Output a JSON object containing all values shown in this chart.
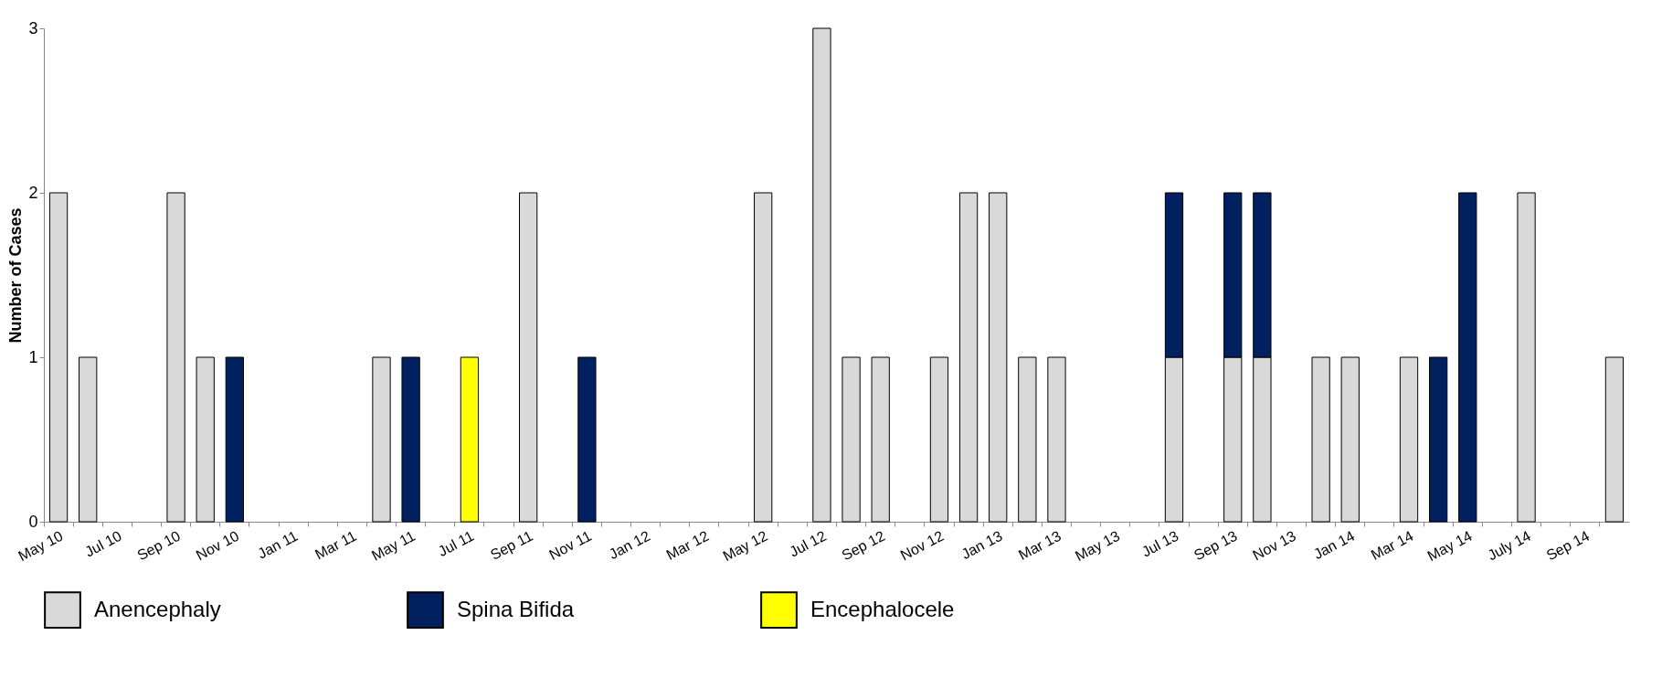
{
  "chart_data": {
    "type": "bar",
    "stacked": true,
    "ylabel": "Number of Cases",
    "ylim": [
      0,
      3
    ],
    "yticks": [
      0,
      1,
      2,
      3
    ],
    "legend": "bottom",
    "categories": [
      "May 10",
      null,
      "Jul 10",
      null,
      "Sep 10",
      null,
      "Nov 10",
      null,
      "Jan 11",
      null,
      "Mar 11",
      null,
      "May 11",
      null,
      "Jul 11",
      null,
      "Sep 11",
      null,
      "Nov 11",
      null,
      "Jan 12",
      null,
      "Mar 12",
      null,
      "May 12",
      null,
      "Jul 12",
      null,
      "Sep 12",
      null,
      "Nov 12",
      null,
      "Jan 13",
      null,
      "Mar 13",
      null,
      "May 13",
      null,
      "Jul 13",
      null,
      "Sep 13",
      null,
      "Nov 13",
      null,
      "Jan 14",
      null,
      "Mar 14",
      null,
      "May 14",
      null,
      "July 14",
      null,
      "Sep 14",
      null
    ],
    "series": [
      {
        "name": "Anencephaly",
        "color": "#d9d9d9",
        "values": [
          2,
          1,
          null,
          null,
          2,
          1,
          null,
          null,
          null,
          null,
          null,
          1,
          null,
          null,
          null,
          null,
          2,
          null,
          null,
          null,
          null,
          null,
          null,
          null,
          2,
          null,
          3,
          1,
          1,
          null,
          1,
          2,
          2,
          1,
          1,
          null,
          null,
          null,
          1,
          null,
          1,
          1,
          null,
          1,
          1,
          null,
          1,
          null,
          null,
          null,
          2,
          null,
          null,
          1
        ]
      },
      {
        "name": "Spina Bifida",
        "color": "#002060",
        "values": [
          null,
          null,
          null,
          null,
          null,
          null,
          1,
          null,
          null,
          null,
          null,
          null,
          1,
          null,
          null,
          null,
          null,
          null,
          1,
          null,
          null,
          null,
          null,
          null,
          null,
          null,
          null,
          null,
          null,
          null,
          null,
          null,
          null,
          null,
          null,
          null,
          null,
          null,
          1,
          null,
          1,
          1,
          null,
          null,
          null,
          null,
          null,
          1,
          2,
          null,
          null,
          null,
          null,
          null
        ]
      },
      {
        "name": "Encephalocele",
        "color": "#ffff00",
        "values": [
          null,
          null,
          null,
          null,
          null,
          null,
          null,
          null,
          null,
          null,
          null,
          null,
          null,
          null,
          1,
          null,
          null,
          null,
          null,
          null,
          null,
          null,
          null,
          null,
          null,
          null,
          null,
          null,
          null,
          null,
          null,
          null,
          null,
          null,
          null,
          null,
          null,
          null,
          null,
          null,
          null,
          null,
          null,
          null,
          null,
          null,
          null,
          null,
          null,
          null,
          null,
          null,
          null,
          null
        ]
      }
    ]
  }
}
